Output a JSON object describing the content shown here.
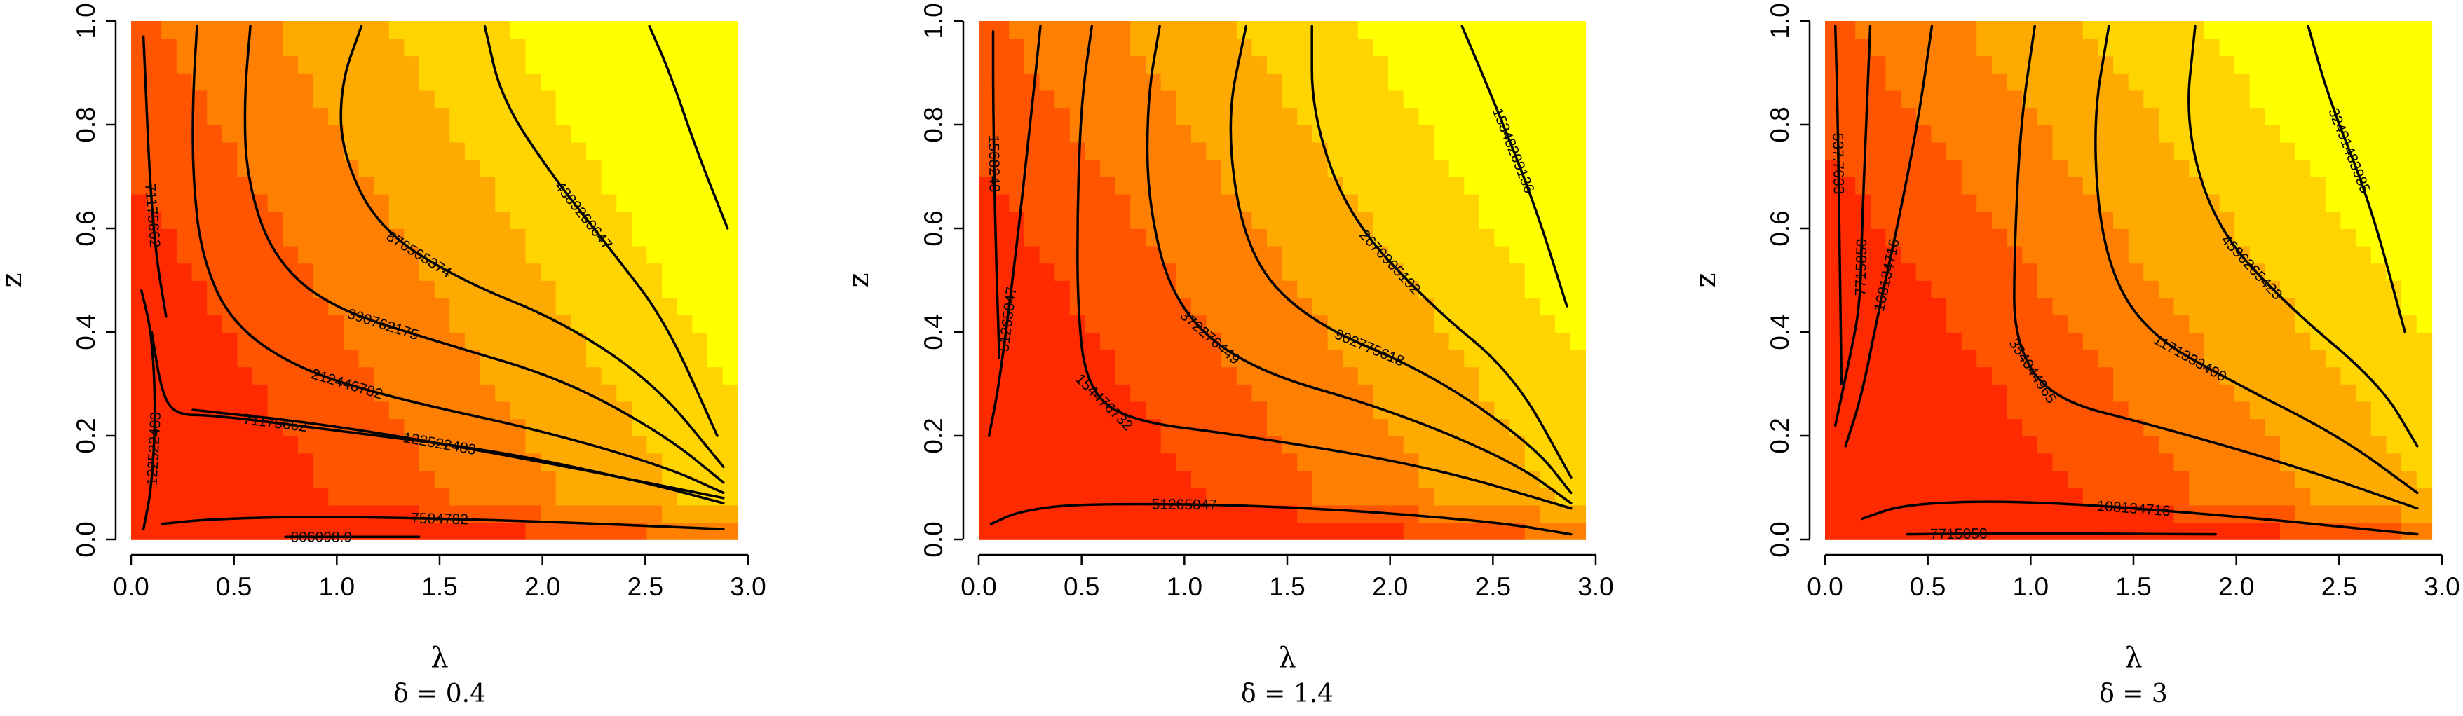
{
  "figure": {
    "colors": {
      "levels": [
        "#ff2a00",
        "#ff5500",
        "#ff8000",
        "#ffaa00",
        "#ffd400",
        "#ffff00",
        "#ffff80"
      ],
      "contour_line": "#000000",
      "background": "#ffffff"
    }
  },
  "chart_data": [
    {
      "type": "heatmap",
      "xlabel": "λ",
      "ylabel": "z",
      "caption": "δ = 0.4",
      "xlim": [
        0,
        3
      ],
      "ylim": [
        0,
        1
      ],
      "x_ticks": [
        "0.0",
        "0.5",
        "1.0",
        "1.5",
        "2.0",
        "2.5",
        "3.0"
      ],
      "y_ticks": [
        "0.0",
        "0.2",
        "0.4",
        "0.6",
        "0.8",
        "1.0"
      ],
      "contours": [
        {
          "label": "71175662",
          "points": [
            [
              0.06,
              0.97
            ],
            [
              0.07,
              0.88
            ],
            [
              0.09,
              0.7
            ],
            [
              0.12,
              0.55
            ],
            [
              0.17,
              0.43
            ]
          ]
        },
        {
          "label": "212446782",
          "points": [
            [
              0.32,
              0.99
            ],
            [
              0.3,
              0.85
            ],
            [
              0.3,
              0.7
            ],
            [
              0.34,
              0.55
            ],
            [
              0.48,
              0.42
            ],
            [
              0.8,
              0.33
            ],
            [
              1.3,
              0.27
            ],
            [
              2.0,
              0.21
            ],
            [
              2.6,
              0.14
            ],
            [
              2.88,
              0.09
            ]
          ]
        },
        {
          "label": "390762175",
          "points": [
            [
              0.58,
              0.99
            ],
            [
              0.55,
              0.85
            ],
            [
              0.56,
              0.7
            ],
            [
              0.68,
              0.55
            ],
            [
              0.95,
              0.45
            ],
            [
              1.5,
              0.38
            ],
            [
              2.1,
              0.31
            ],
            [
              2.6,
              0.2
            ],
            [
              2.88,
              0.11
            ]
          ]
        },
        {
          "label": "876565374",
          "points": [
            [
              1.12,
              0.99
            ],
            [
              1.02,
              0.88
            ],
            [
              1.02,
              0.75
            ],
            [
              1.2,
              0.6
            ],
            [
              1.6,
              0.5
            ],
            [
              2.1,
              0.42
            ],
            [
              2.55,
              0.3
            ],
            [
              2.88,
              0.14
            ]
          ]
        },
        {
          "label": "4389260647",
          "points": [
            [
              1.72,
              0.99
            ],
            [
              1.8,
              0.85
            ],
            [
              2.05,
              0.7
            ],
            [
              2.35,
              0.55
            ],
            [
              2.6,
              0.42
            ],
            [
              2.85,
              0.2
            ]
          ]
        },
        {
          "label": "",
          "points": [
            [
              2.52,
              0.99
            ],
            [
              2.62,
              0.9
            ],
            [
              2.75,
              0.75
            ],
            [
              2.9,
              0.6
            ]
          ]
        },
        {
          "label": "71175662",
          "points": [
            [
              0.1,
              0.4
            ],
            [
              0.15,
              0.28
            ],
            [
              0.22,
              0.24
            ],
            [
              0.4,
              0.24
            ],
            [
              1.0,
              0.21
            ],
            [
              1.8,
              0.17
            ],
            [
              2.5,
              0.11
            ],
            [
              2.88,
              0.07
            ]
          ]
        },
        {
          "label": "122522483",
          "points": [
            [
              0.3,
              0.25
            ],
            [
              1.0,
              0.22
            ],
            [
              2.0,
              0.15
            ],
            [
              2.88,
              0.08
            ]
          ]
        },
        {
          "label": "7504782",
          "points": [
            [
              0.15,
              0.03
            ],
            [
              0.4,
              0.04
            ],
            [
              1.0,
              0.045
            ],
            [
              2.0,
              0.035
            ],
            [
              2.88,
              0.02
            ]
          ]
        },
        {
          "label": "806098.9",
          "points": [
            [
              0.75,
              0.005
            ],
            [
              1.1,
              0.005
            ],
            [
              1.4,
              0.005
            ]
          ]
        },
        {
          "label": "122522483",
          "points": [
            [
              0.05,
              0.48
            ],
            [
              0.1,
              0.4
            ],
            [
              0.12,
              0.25
            ],
            [
              0.1,
              0.1
            ],
            [
              0.06,
              0.02
            ]
          ]
        }
      ]
    },
    {
      "type": "heatmap",
      "xlabel": "λ",
      "ylabel": "z",
      "caption": "δ = 1.4",
      "xlim": [
        0,
        3
      ],
      "ylim": [
        0,
        1
      ],
      "x_ticks": [
        "0.0",
        "0.5",
        "1.0",
        "1.5",
        "2.0",
        "2.5",
        "3.0"
      ],
      "y_ticks": [
        "0.0",
        "0.2",
        "0.4",
        "0.6",
        "0.8",
        "1.0"
      ],
      "contours": [
        {
          "label": "1568248",
          "points": [
            [
              0.07,
              0.98
            ],
            [
              0.07,
              0.85
            ],
            [
              0.08,
              0.6
            ],
            [
              0.1,
              0.35
            ]
          ]
        },
        {
          "label": "51265047",
          "points": [
            [
              0.3,
              0.99
            ],
            [
              0.25,
              0.8
            ],
            [
              0.18,
              0.55
            ],
            [
              0.1,
              0.3
            ],
            [
              0.05,
              0.2
            ]
          ]
        },
        {
          "label": "154476732",
          "points": [
            [
              0.55,
              0.99
            ],
            [
              0.5,
              0.85
            ],
            [
              0.48,
              0.65
            ],
            [
              0.48,
              0.45
            ],
            [
              0.52,
              0.3
            ],
            [
              0.7,
              0.23
            ],
            [
              1.3,
              0.2
            ],
            [
              2.2,
              0.14
            ],
            [
              2.88,
              0.06
            ]
          ]
        },
        {
          "label": "372276449",
          "points": [
            [
              0.88,
              0.99
            ],
            [
              0.82,
              0.85
            ],
            [
              0.82,
              0.65
            ],
            [
              0.95,
              0.45
            ],
            [
              1.3,
              0.33
            ],
            [
              2.0,
              0.25
            ],
            [
              2.6,
              0.15
            ],
            [
              2.88,
              0.07
            ]
          ]
        },
        {
          "label": "902775618",
          "points": [
            [
              1.3,
              0.99
            ],
            [
              1.2,
              0.8
            ],
            [
              1.3,
              0.55
            ],
            [
              1.6,
              0.42
            ],
            [
              2.2,
              0.32
            ],
            [
              2.7,
              0.18
            ],
            [
              2.88,
              0.09
            ]
          ]
        },
        {
          "label": "2670905192",
          "points": [
            [
              1.62,
              0.99
            ],
            [
              1.62,
              0.82
            ],
            [
              1.8,
              0.62
            ],
            [
              2.2,
              0.45
            ],
            [
              2.6,
              0.32
            ],
            [
              2.88,
              0.12
            ]
          ]
        },
        {
          "label": "1534820913​6",
          "points": [
            [
              2.35,
              0.99
            ],
            [
              2.5,
              0.85
            ],
            [
              2.7,
              0.65
            ],
            [
              2.86,
              0.45
            ]
          ]
        },
        {
          "label": "51265047",
          "points": [
            [
              0.06,
              0.03
            ],
            [
              0.2,
              0.055
            ],
            [
              0.5,
              0.07
            ],
            [
              1.5,
              0.065
            ],
            [
              2.5,
              0.035
            ],
            [
              2.88,
              0.01
            ]
          ]
        }
      ]
    },
    {
      "type": "heatmap",
      "xlabel": "λ",
      "ylabel": "z",
      "caption": "δ = 3",
      "xlim": [
        0,
        3
      ],
      "ylim": [
        0,
        1
      ],
      "x_ticks": [
        "0.0",
        "0.5",
        "1.0",
        "1.5",
        "2.0",
        "2.5",
        "3.0"
      ],
      "y_ticks": [
        "0.0",
        "0.2",
        "0.4",
        "0.6",
        "0.8",
        "1.0"
      ],
      "contours": [
        {
          "label": "537.7633",
          "points": [
            [
              0.05,
              0.99
            ],
            [
              0.06,
              0.85
            ],
            [
              0.07,
              0.6
            ],
            [
              0.08,
              0.3
            ]
          ]
        },
        {
          "label": "7715850",
          "points": [
            [
              0.22,
              0.99
            ],
            [
              0.2,
              0.8
            ],
            [
              0.18,
              0.6
            ],
            [
              0.17,
              0.45
            ],
            [
              0.12,
              0.35
            ],
            [
              0.05,
              0.22
            ]
          ]
        },
        {
          "label": "108134716",
          "points": [
            [
              0.52,
              0.99
            ],
            [
              0.45,
              0.8
            ],
            [
              0.35,
              0.6
            ],
            [
              0.25,
              0.42
            ],
            [
              0.18,
              0.28
            ],
            [
              0.1,
              0.18
            ]
          ]
        },
        {
          "label": "354044965",
          "points": [
            [
              1.02,
              0.99
            ],
            [
              0.95,
              0.8
            ],
            [
              0.92,
              0.55
            ],
            [
              0.92,
              0.38
            ],
            [
              1.1,
              0.27
            ],
            [
              1.6,
              0.22
            ],
            [
              2.3,
              0.14
            ],
            [
              2.88,
              0.06
            ]
          ]
        },
        {
          "label": "1171333400",
          "points": [
            [
              1.38,
              0.99
            ],
            [
              1.3,
              0.8
            ],
            [
              1.35,
              0.55
            ],
            [
              1.55,
              0.4
            ],
            [
              2.0,
              0.3
            ],
            [
              2.5,
              0.2
            ],
            [
              2.88,
              0.09
            ]
          ]
        },
        {
          "label": "4596265423",
          "points": [
            [
              1.8,
              0.99
            ],
            [
              1.75,
              0.8
            ],
            [
              1.9,
              0.6
            ],
            [
              2.25,
              0.45
            ],
            [
              2.7,
              0.3
            ],
            [
              2.88,
              0.18
            ]
          ]
        },
        {
          "label": "32491483985",
          "points": [
            [
              2.35,
              0.99
            ],
            [
              2.45,
              0.85
            ],
            [
              2.65,
              0.65
            ],
            [
              2.82,
              0.4
            ]
          ]
        },
        {
          "label": "108134716",
          "points": [
            [
              0.18,
              0.04
            ],
            [
              0.4,
              0.07
            ],
            [
              1.0,
              0.075
            ],
            [
              2.0,
              0.045
            ],
            [
              2.88,
              0.01
            ]
          ]
        },
        {
          "label": "7715850",
          "points": [
            [
              0.4,
              0.01
            ],
            [
              0.9,
              0.012
            ],
            [
              1.9,
              0.01
            ]
          ]
        }
      ]
    }
  ]
}
